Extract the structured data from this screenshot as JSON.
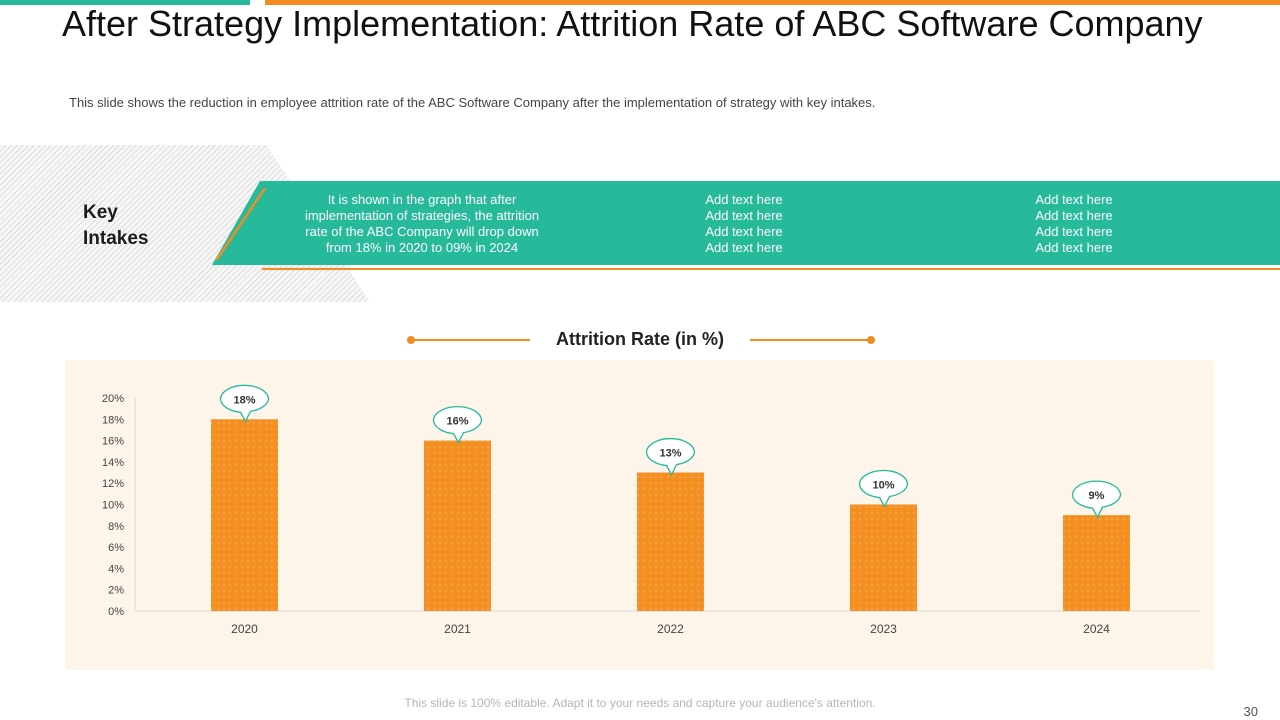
{
  "slide": {
    "title": "After Strategy Implementation: Attrition Rate of ABC Software Company",
    "subtitle": "This slide shows the reduction in employee attrition rate of the ABC Software Company after the implementation of strategy with key intakes.",
    "footer": "This slide is 100% editable. Adapt it to your needs and capture your audience's attention.",
    "page_number": "30"
  },
  "key_intakes": {
    "label_line1": "Key",
    "label_line2": "Intakes",
    "col1": [
      "It is shown in the graph that after",
      "implementation of strategies, the attrition",
      "rate of the ABC Company will drop down",
      "from 18% in 2020 to 09% in 2024"
    ],
    "col2": [
      "Add text here",
      "Add text here",
      "Add text here",
      "Add text here"
    ],
    "col3": [
      "Add text here",
      "Add text here",
      "Add text here",
      "Add text here"
    ]
  },
  "colors": {
    "bar": "#f39021",
    "teal": "#26b99a",
    "orange": "#f08c22",
    "chart_bg": "#fdf4ea"
  },
  "chart_data": {
    "type": "bar",
    "title": "Attrition Rate (in %)",
    "categories": [
      "2020",
      "2021",
      "2022",
      "2023",
      "2024"
    ],
    "values": [
      18,
      16,
      13,
      10,
      9
    ],
    "data_labels": [
      "18%",
      "16%",
      "13%",
      "10%",
      "9%"
    ],
    "ylim": [
      0,
      20
    ],
    "yticks": [
      0,
      2,
      4,
      6,
      8,
      10,
      12,
      14,
      16,
      18,
      20
    ],
    "ytick_labels": [
      "0%",
      "2%",
      "4%",
      "6%",
      "8%",
      "10%",
      "12%",
      "14%",
      "16%",
      "18%",
      "20%"
    ],
    "xlabel": "",
    "ylabel": ""
  }
}
